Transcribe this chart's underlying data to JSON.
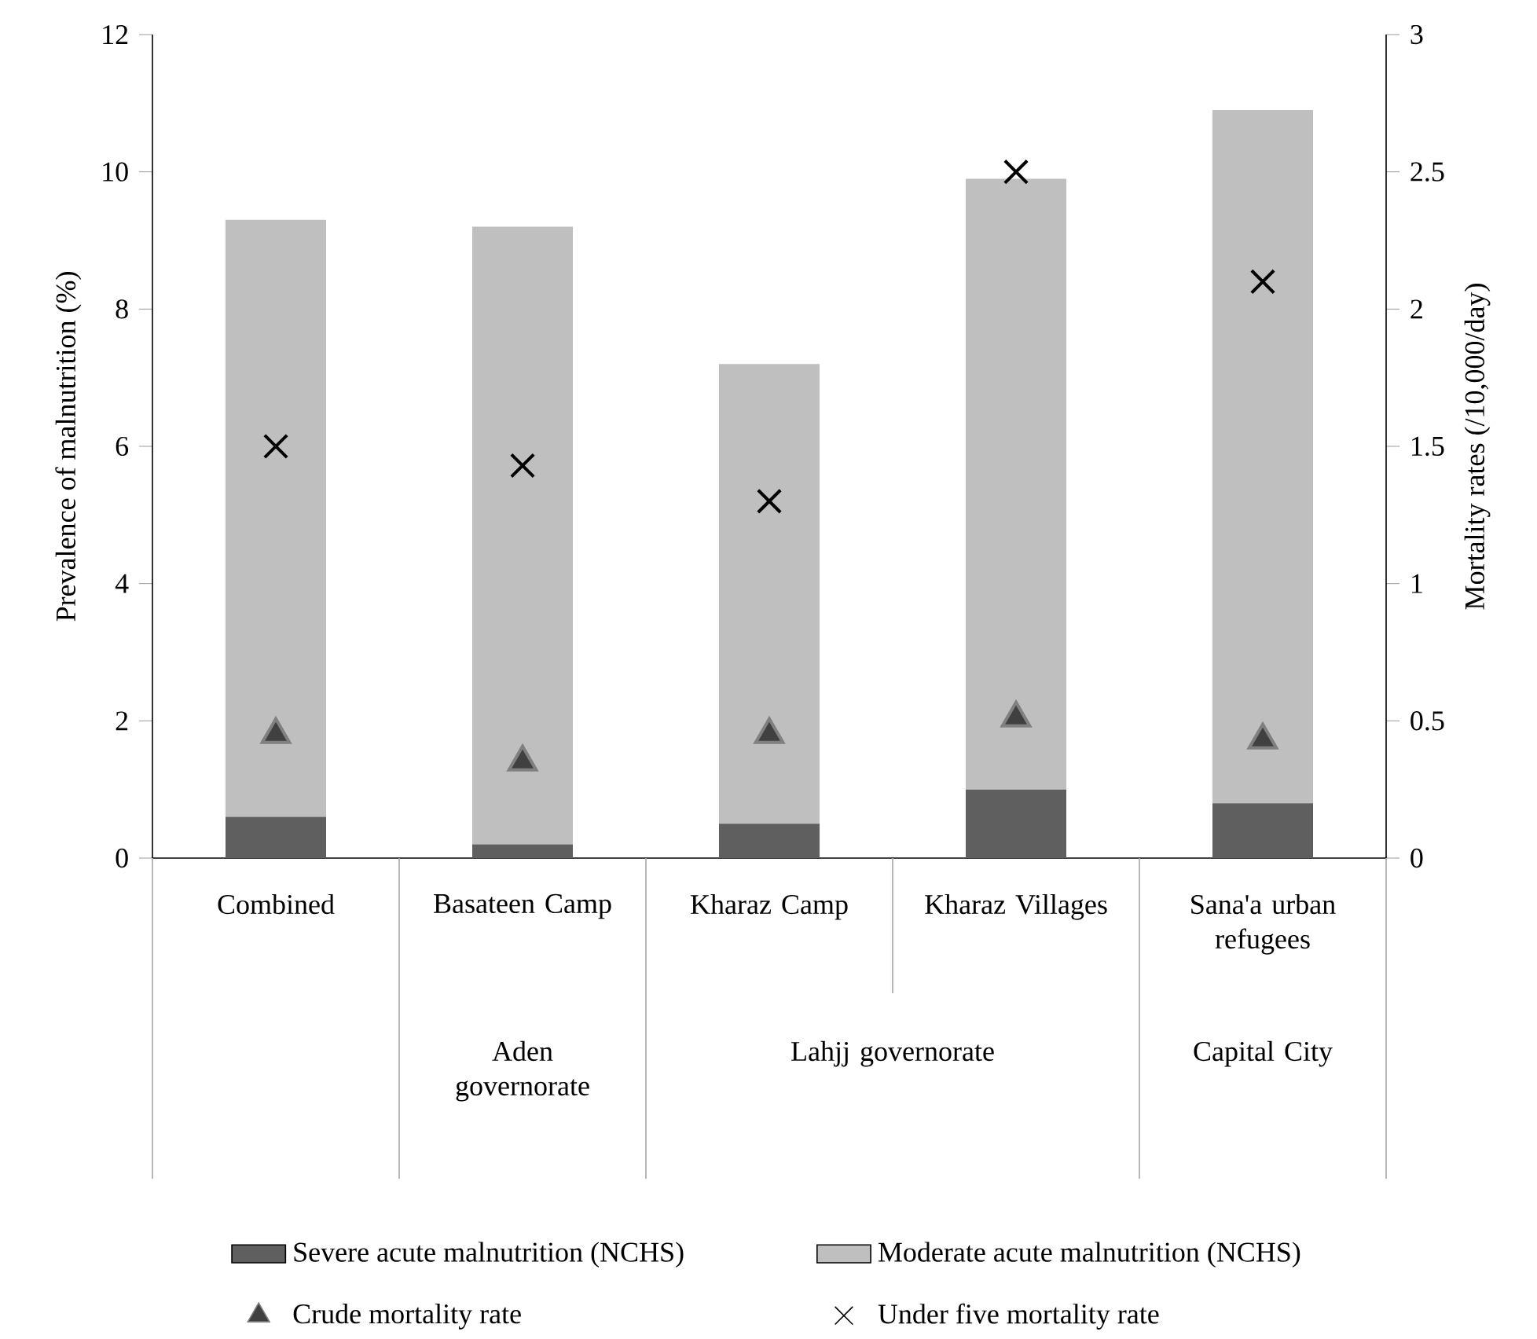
{
  "chart_data": {
    "type": "bar",
    "stacked": true,
    "categories": [
      "Combined",
      "Basateen Camp",
      "Kharaz Camp",
      "Kharaz Villages",
      "Sana'a urban refugees"
    ],
    "series": [
      {
        "name": "Severe acute malnutrition (NCHS)",
        "color": "#5f5f5f",
        "values": [
          0.6,
          0.2,
          0.5,
          1.0,
          0.8
        ]
      },
      {
        "name": "Moderate acute malnutrition (NCHS)",
        "color": "#bfbfbf",
        "values": [
          8.7,
          9.0,
          6.7,
          8.9,
          10.1
        ]
      },
      {
        "name": "Crude mortality rate",
        "type": "scatter",
        "axis": "y2",
        "marker": "triangle",
        "color": "#404040",
        "values": [
          0.45,
          0.35,
          0.45,
          0.51,
          0.43
        ]
      },
      {
        "name": "Under five mortality rate",
        "type": "scatter",
        "axis": "y2",
        "marker": "cross",
        "color": "#000000",
        "values": [
          1.5,
          1.43,
          1.3,
          2.5,
          2.1
        ]
      }
    ],
    "ylabel": "Prevalence of malnutrition (%)",
    "y2label": "Mortality rates (/10,000/day)",
    "ylim": [
      0,
      12
    ],
    "yticks": [
      0,
      2,
      4,
      6,
      8,
      10,
      12
    ],
    "y2lim": [
      0,
      3
    ],
    "y2ticks": [
      0,
      0.5,
      1,
      1.5,
      2,
      2.5,
      3
    ],
    "annotations": [
      "Aden governorate",
      "Lahjj governorate",
      "Capital City"
    ],
    "legend": "bottom",
    "grid": false
  }
}
